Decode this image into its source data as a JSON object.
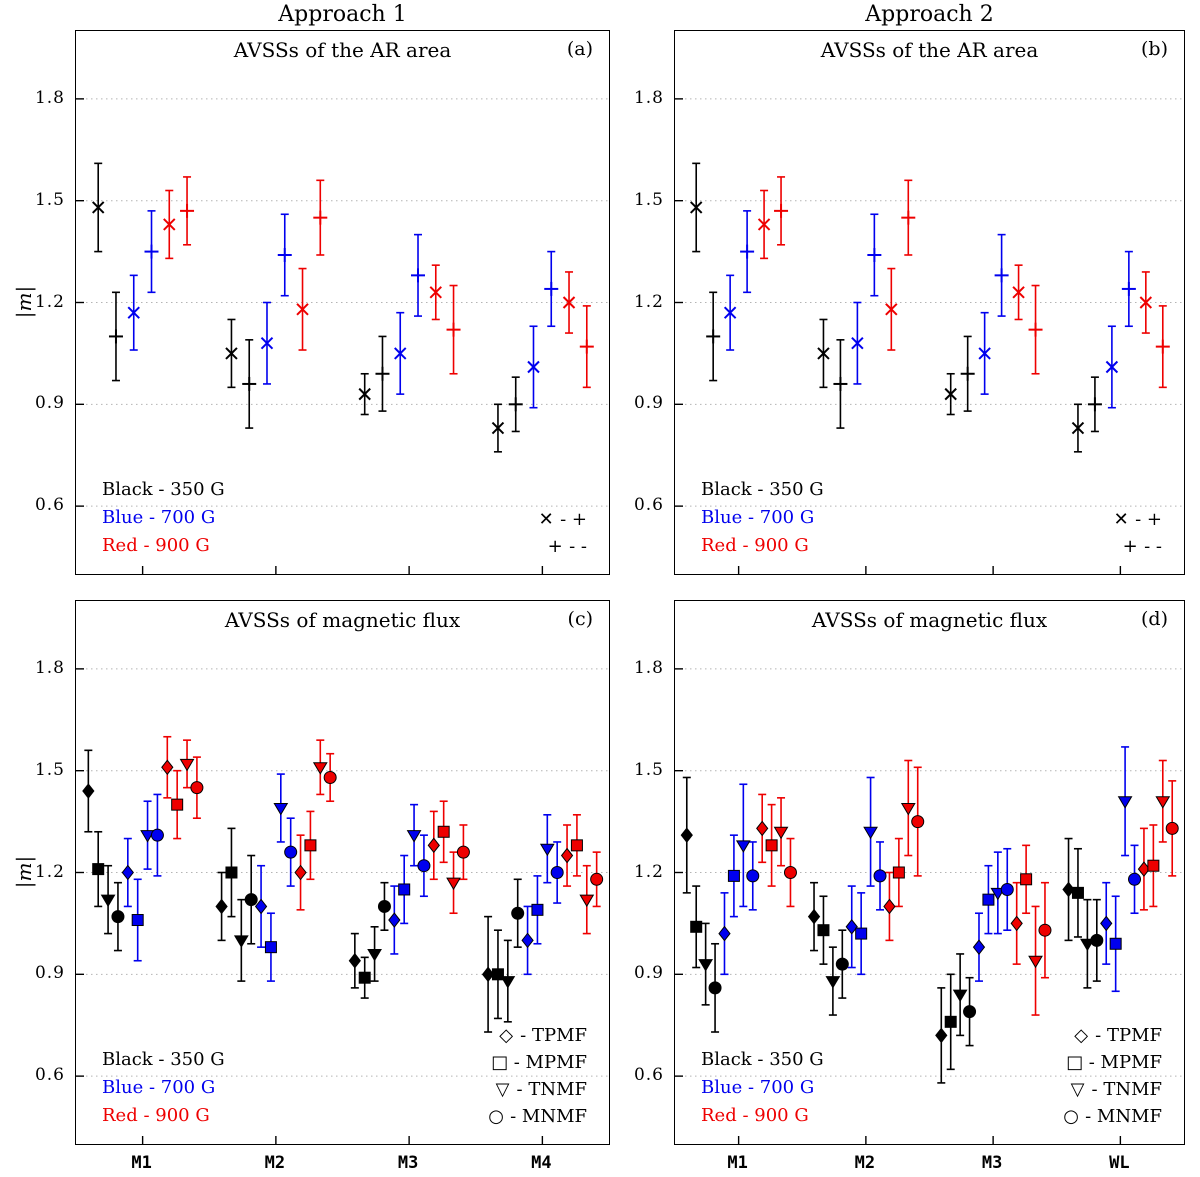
{
  "figure": {
    "column_titles": [
      "Approach 1",
      "Approach 2"
    ],
    "ylabel": "|m|"
  },
  "axes": {
    "yticks": [
      0.6,
      0.9,
      1.2,
      1.5,
      1.8
    ],
    "ylim": [
      0.4,
      2.0
    ],
    "grid": "dotted"
  },
  "colors": {
    "black": "#000000",
    "blue": "#0000ee",
    "red": "#ee0000",
    "grid": "#b4b4b4"
  },
  "color_legend": [
    {
      "label": "Black - 350 G",
      "color": "#000000"
    },
    {
      "label": "Blue - 700 G",
      "color": "#0000ee"
    },
    {
      "label": "Red - 900 G",
      "color": "#ee0000"
    }
  ],
  "chart_data": [
    {
      "id": "a",
      "type": "scatter",
      "title": "AVSSs of the AR area",
      "corner_label": "(a)",
      "categories": [
        "M1",
        "M2",
        "M3",
        "M4"
      ],
      "show_xticklabels": false,
      "marker_legend": [
        {
          "symbol": "✕",
          "label": "- +"
        },
        {
          "symbol": "+",
          "label": "- -"
        }
      ],
      "series": [
        {
          "name": "350 G x",
          "color": "#000000",
          "marker": "x",
          "values": [
            1.48,
            1.05,
            0.93,
            0.83
          ],
          "errors": [
            0.13,
            0.1,
            0.06,
            0.07
          ]
        },
        {
          "name": "350 G plus",
          "color": "#000000",
          "marker": "plus",
          "values": [
            1.1,
            0.96,
            0.99,
            0.9
          ],
          "errors": [
            0.13,
            0.13,
            0.11,
            0.08
          ]
        },
        {
          "name": "700 G x",
          "color": "#0000ee",
          "marker": "x",
          "values": [
            1.17,
            1.08,
            1.05,
            1.01
          ],
          "errors": [
            0.11,
            0.12,
            0.12,
            0.12
          ]
        },
        {
          "name": "700 G plus",
          "color": "#0000ee",
          "marker": "plus",
          "values": [
            1.35,
            1.34,
            1.28,
            1.24
          ],
          "errors": [
            0.12,
            0.12,
            0.12,
            0.11
          ]
        },
        {
          "name": "900 G x",
          "color": "#ee0000",
          "marker": "x",
          "values": [
            1.43,
            1.18,
            1.23,
            1.2
          ],
          "errors": [
            0.1,
            0.12,
            0.08,
            0.09
          ]
        },
        {
          "name": "900 G plus",
          "color": "#ee0000",
          "marker": "plus",
          "values": [
            1.47,
            1.45,
            1.12,
            1.07
          ],
          "errors": [
            0.1,
            0.11,
            0.13,
            0.12
          ]
        }
      ]
    },
    {
      "id": "b",
      "type": "scatter",
      "title": "AVSSs of the AR area",
      "corner_label": "(b)",
      "categories": [
        "M1",
        "M2",
        "M3",
        "WL"
      ],
      "show_xticklabels": false,
      "marker_legend": [
        {
          "symbol": "✕",
          "label": "- +"
        },
        {
          "symbol": "+",
          "label": "- -"
        }
      ],
      "series": [
        {
          "name": "350 G x",
          "color": "#000000",
          "marker": "x",
          "values": [
            1.48,
            1.05,
            0.93,
            0.83
          ],
          "errors": [
            0.13,
            0.1,
            0.06,
            0.07
          ]
        },
        {
          "name": "350 G plus",
          "color": "#000000",
          "marker": "plus",
          "values": [
            1.1,
            0.96,
            0.99,
            0.9
          ],
          "errors": [
            0.13,
            0.13,
            0.11,
            0.08
          ]
        },
        {
          "name": "700 G x",
          "color": "#0000ee",
          "marker": "x",
          "values": [
            1.17,
            1.08,
            1.05,
            1.01
          ],
          "errors": [
            0.11,
            0.12,
            0.12,
            0.12
          ]
        },
        {
          "name": "700 G plus",
          "color": "#0000ee",
          "marker": "plus",
          "values": [
            1.35,
            1.34,
            1.28,
            1.24
          ],
          "errors": [
            0.12,
            0.12,
            0.12,
            0.11
          ]
        },
        {
          "name": "900 G x",
          "color": "#ee0000",
          "marker": "x",
          "values": [
            1.43,
            1.18,
            1.23,
            1.2
          ],
          "errors": [
            0.1,
            0.12,
            0.08,
            0.09
          ]
        },
        {
          "name": "900 G plus",
          "color": "#ee0000",
          "marker": "plus",
          "values": [
            1.47,
            1.45,
            1.12,
            1.07
          ],
          "errors": [
            0.1,
            0.11,
            0.13,
            0.12
          ]
        }
      ]
    },
    {
      "id": "c",
      "type": "scatter",
      "title": "AVSSs of magnetic flux",
      "corner_label": "(c)",
      "categories": [
        "M1",
        "M2",
        "M3",
        "M4"
      ],
      "show_xticklabels": true,
      "marker_legend": [
        {
          "symbol": "◇",
          "label": "- TPMF"
        },
        {
          "symbol": "□",
          "label": "- MPMF"
        },
        {
          "symbol": "▽",
          "label": "- TNMF"
        },
        {
          "symbol": "○",
          "label": "- MNMF"
        }
      ],
      "series": [
        {
          "name": "350 G TPMF",
          "color": "#000000",
          "marker": "diamond",
          "values": [
            1.44,
            1.1,
            0.94,
            0.9
          ],
          "errors": [
            0.12,
            0.1,
            0.08,
            0.17
          ]
        },
        {
          "name": "350 G MPMF",
          "color": "#000000",
          "marker": "square",
          "values": [
            1.21,
            1.2,
            0.89,
            0.9
          ],
          "errors": [
            0.11,
            0.13,
            0.06,
            0.13
          ]
        },
        {
          "name": "350 G TNMF",
          "color": "#000000",
          "marker": "triangle-down",
          "values": [
            1.12,
            1.0,
            0.96,
            0.88
          ],
          "errors": [
            0.1,
            0.12,
            0.08,
            0.12
          ]
        },
        {
          "name": "350 G MNMF",
          "color": "#000000",
          "marker": "circle",
          "values": [
            1.07,
            1.12,
            1.1,
            1.08
          ],
          "errors": [
            0.1,
            0.13,
            0.07,
            0.1
          ]
        },
        {
          "name": "700 G TPMF",
          "color": "#0000ee",
          "marker": "diamond",
          "values": [
            1.2,
            1.1,
            1.06,
            1.0
          ],
          "errors": [
            0.1,
            0.12,
            0.1,
            0.1
          ]
        },
        {
          "name": "700 G MPMF",
          "color": "#0000ee",
          "marker": "square",
          "values": [
            1.06,
            0.98,
            1.15,
            1.09
          ],
          "errors": [
            0.12,
            0.1,
            0.1,
            0.1
          ]
        },
        {
          "name": "700 G TNMF",
          "color": "#0000ee",
          "marker": "triangle-down",
          "values": [
            1.31,
            1.39,
            1.31,
            1.27
          ],
          "errors": [
            0.1,
            0.1,
            0.09,
            0.1
          ]
        },
        {
          "name": "700 G MNMF",
          "color": "#0000ee",
          "marker": "circle",
          "values": [
            1.31,
            1.26,
            1.22,
            1.2
          ],
          "errors": [
            0.12,
            0.1,
            0.09,
            0.09
          ]
        },
        {
          "name": "900 G TPMF",
          "color": "#ee0000",
          "marker": "diamond",
          "values": [
            1.51,
            1.2,
            1.28,
            1.25
          ],
          "errors": [
            0.09,
            0.11,
            0.1,
            0.09
          ]
        },
        {
          "name": "900 G MPMF",
          "color": "#ee0000",
          "marker": "square",
          "values": [
            1.4,
            1.28,
            1.32,
            1.28
          ],
          "errors": [
            0.1,
            0.1,
            0.09,
            0.09
          ]
        },
        {
          "name": "900 G TNMF",
          "color": "#ee0000",
          "marker": "triangle-down",
          "values": [
            1.52,
            1.51,
            1.17,
            1.12
          ],
          "errors": [
            0.07,
            0.08,
            0.09,
            0.1
          ]
        },
        {
          "name": "900 G MNMF",
          "color": "#ee0000",
          "marker": "circle",
          "values": [
            1.45,
            1.48,
            1.26,
            1.18
          ],
          "errors": [
            0.09,
            0.07,
            0.08,
            0.08
          ]
        }
      ]
    },
    {
      "id": "d",
      "type": "scatter",
      "title": "AVSSs of magnetic flux",
      "corner_label": "(d)",
      "categories": [
        "M1",
        "M2",
        "M3",
        "WL"
      ],
      "show_xticklabels": true,
      "marker_legend": [
        {
          "symbol": "◇",
          "label": "- TPMF"
        },
        {
          "symbol": "□",
          "label": "- MPMF"
        },
        {
          "symbol": "▽",
          "label": "- TNMF"
        },
        {
          "symbol": "○",
          "label": "- MNMF"
        }
      ],
      "series": [
        {
          "name": "350 G TPMF",
          "color": "#000000",
          "marker": "diamond",
          "values": [
            1.31,
            1.07,
            0.72,
            1.15
          ],
          "errors": [
            0.17,
            0.1,
            0.14,
            0.15
          ]
        },
        {
          "name": "350 G MPMF",
          "color": "#000000",
          "marker": "square",
          "values": [
            1.04,
            1.03,
            0.76,
            1.14
          ],
          "errors": [
            0.12,
            0.1,
            0.14,
            0.13
          ]
        },
        {
          "name": "350 G TNMF",
          "color": "#000000",
          "marker": "triangle-down",
          "values": [
            0.93,
            0.88,
            0.84,
            0.99
          ],
          "errors": [
            0.12,
            0.1,
            0.12,
            0.13
          ]
        },
        {
          "name": "350 G MNMF",
          "color": "#000000",
          "marker": "circle",
          "values": [
            0.86,
            0.93,
            0.79,
            1.0
          ],
          "errors": [
            0.13,
            0.1,
            0.1,
            0.12
          ]
        },
        {
          "name": "700 G TPMF",
          "color": "#0000ee",
          "marker": "diamond",
          "values": [
            1.02,
            1.04,
            0.98,
            1.05
          ],
          "errors": [
            0.12,
            0.12,
            0.1,
            0.12
          ]
        },
        {
          "name": "700 G MPMF",
          "color": "#0000ee",
          "marker": "square",
          "values": [
            1.19,
            1.02,
            1.12,
            0.99
          ],
          "errors": [
            0.12,
            0.12,
            0.1,
            0.14
          ]
        },
        {
          "name": "700 G TNMF",
          "color": "#0000ee",
          "marker": "triangle-down",
          "values": [
            1.28,
            1.32,
            1.14,
            1.41
          ],
          "errors": [
            0.18,
            0.16,
            0.12,
            0.16
          ]
        },
        {
          "name": "700 G MNMF",
          "color": "#0000ee",
          "marker": "circle",
          "values": [
            1.19,
            1.19,
            1.15,
            1.18
          ],
          "errors": [
            0.1,
            0.1,
            0.12,
            0.1
          ]
        },
        {
          "name": "900 G TPMF",
          "color": "#ee0000",
          "marker": "diamond",
          "values": [
            1.33,
            1.1,
            1.05,
            1.21
          ],
          "errors": [
            0.1,
            0.1,
            0.12,
            0.12
          ]
        },
        {
          "name": "900 G MPMF",
          "color": "#ee0000",
          "marker": "square",
          "values": [
            1.28,
            1.2,
            1.18,
            1.22
          ],
          "errors": [
            0.12,
            0.1,
            0.1,
            0.12
          ]
        },
        {
          "name": "900 G TNMF",
          "color": "#ee0000",
          "marker": "triangle-down",
          "values": [
            1.32,
            1.39,
            0.94,
            1.41
          ],
          "errors": [
            0.1,
            0.14,
            0.16,
            0.12
          ]
        },
        {
          "name": "900 G MNMF",
          "color": "#ee0000",
          "marker": "circle",
          "values": [
            1.2,
            1.35,
            1.03,
            1.33
          ],
          "errors": [
            0.1,
            0.16,
            0.14,
            0.14
          ]
        }
      ]
    }
  ]
}
